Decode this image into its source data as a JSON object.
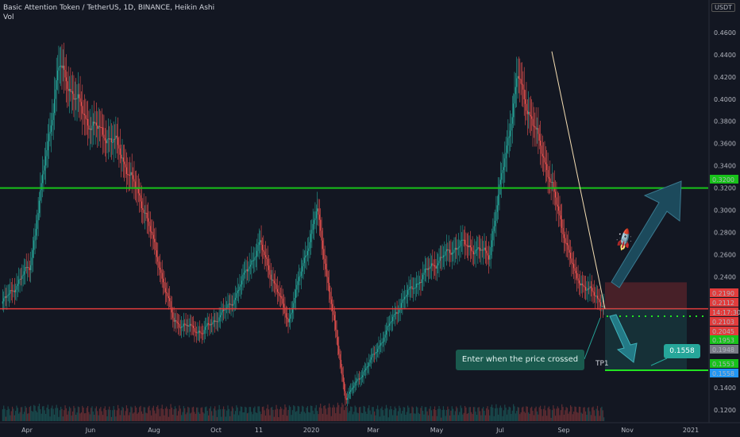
{
  "header": {
    "symbol_line": "Basic Attention Token / TetherUS, 1D, BINANCE, Heikin Ashi",
    "volume_label": "Vol",
    "currency": "USDT"
  },
  "chart_data": {
    "type": "candlestick",
    "chart_style": "Heikin Ashi",
    "y_range": [
      0.11,
      0.475
    ],
    "y_ticks": [
      0.12,
      0.14,
      0.24,
      0.26,
      0.28,
      0.3,
      0.32,
      0.34,
      0.36,
      0.38,
      0.4,
      0.42,
      0.44,
      0.46
    ],
    "x_tick_labels": [
      "Apr",
      "Jun",
      "Aug",
      "Oct",
      "11",
      "2020",
      "Mar",
      "May",
      "Jul",
      "Sep",
      "Nov",
      "2021"
    ],
    "price_path": [
      {
        "t": "Mar 2019",
        "v": 0.215
      },
      {
        "t": "Apr 2019",
        "v": 0.25
      },
      {
        "t": "mid Apr 2019",
        "v": 0.43
      },
      {
        "t": "May 2019",
        "v": 0.38
      },
      {
        "t": "Jun 2019",
        "v": 0.36
      },
      {
        "t": "Jul 2019",
        "v": 0.3
      },
      {
        "t": "Aug 2019",
        "v": 0.2
      },
      {
        "t": "Sep 2019",
        "v": 0.19
      },
      {
        "t": "Oct 2019",
        "v": 0.215
      },
      {
        "t": "Nov 2019",
        "v": 0.27
      },
      {
        "t": "Dec 2019",
        "v": 0.2
      },
      {
        "t": "Feb 2020",
        "v": 0.3
      },
      {
        "t": "Mar 2020",
        "v": 0.13
      },
      {
        "t": "Apr 2020",
        "v": 0.17
      },
      {
        "t": "May 2020",
        "v": 0.22
      },
      {
        "t": "Jun 2020",
        "v": 0.25
      },
      {
        "t": "Jul 2020",
        "v": 0.27
      },
      {
        "t": "Aug 2020",
        "v": 0.26
      },
      {
        "t": "late Aug 2020",
        "v": 0.42
      },
      {
        "t": "early Sep 2020",
        "v": 0.34
      },
      {
        "t": "Sep 2020",
        "v": 0.24
      },
      {
        "t": "late Sep 2020",
        "v": 0.215
      }
    ],
    "levels": {
      "resistance": 0.32,
      "support": 0.2112,
      "entry_dotted": 0.2045,
      "tp1": 0.1558
    },
    "axis_price_labels": [
      {
        "text": "0.3200",
        "color": "#18c21a"
      },
      {
        "text": "0.2190",
        "color": "#e23c3c"
      },
      {
        "text": "0.2112",
        "color": "#e23c3c"
      },
      {
        "text": "14:17:30",
        "color": "#e23c3c"
      },
      {
        "text": "0.2103",
        "color": "#e23c3c"
      },
      {
        "text": "0.2045",
        "color": "#e23c3c"
      },
      {
        "text": "0.1953",
        "color": "#18c21a"
      },
      {
        "text": "0.1948",
        "color": "#787b86"
      },
      {
        "text": "0.1553",
        "color": "#18c21a"
      },
      {
        "text": "0.1558",
        "color": "#2196f3"
      }
    ],
    "annotations": {
      "entry_text": "Enter when the price crossed",
      "tp_label": "TP1",
      "tp_value": "0.1558"
    }
  },
  "colors": {
    "background": "#131722",
    "up": "#26a69a",
    "down": "#ef5350",
    "resistance": "#18c21a",
    "support": "#e23c3c",
    "trendline": "#f5deb3",
    "arrow": "#1c4a5c"
  }
}
